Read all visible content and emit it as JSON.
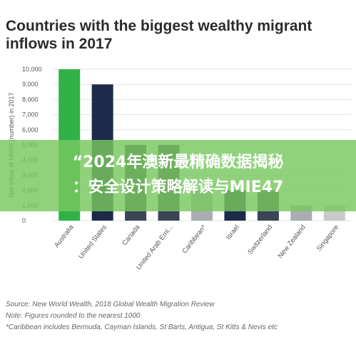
{
  "title_line1": "Countries with the biggest wealthy migrant",
  "title_line2": "inflows in 2017",
  "chart_data": {
    "type": "bar",
    "ylabel": "Net inflow of HNWI (number) in 2017",
    "ylim": [
      0,
      10000
    ],
    "yticks": [
      "10,000",
      "9,000",
      "8,000",
      "7,000",
      "6,000",
      "5,000",
      "4,000",
      "3,000",
      "2,000",
      "1,000",
      "0"
    ],
    "ytick_values": [
      10000,
      9000,
      8000,
      7000,
      6000,
      5000,
      4000,
      3000,
      2000,
      1000,
      0
    ],
    "categories": [
      "Australia",
      "United States",
      "Canada",
      "United Arab Emi...",
      "Caribbean*",
      "Israel",
      "Switzerland",
      "New Zealand",
      "Singapore"
    ],
    "values": [
      10000,
      9000,
      5000,
      5000,
      2000,
      2000,
      2000,
      1000,
      1000
    ],
    "colors": [
      "#30b248",
      "#1c2b4a",
      "#3a4556",
      "#3a4556",
      "#a9adb3",
      "#1c2b4a",
      "#3a4556",
      "#a9adb3",
      "#c7c9cc"
    ],
    "grid": true
  },
  "footer": {
    "source": "Source: New World Wealth, 2018 Global Wealth Migration Review",
    "note": "Note: Figures rounded to the nearest 1000",
    "caribbean": "*Caribbean includes Bermuda, Cayman Islands, St Barts, Antigua, St Kitts & Nevis etc"
  },
  "overlay": {
    "line1": "“2024年澳新最精确数据揭秘",
    "line2": "：安全设计策略解读与MIE47"
  }
}
